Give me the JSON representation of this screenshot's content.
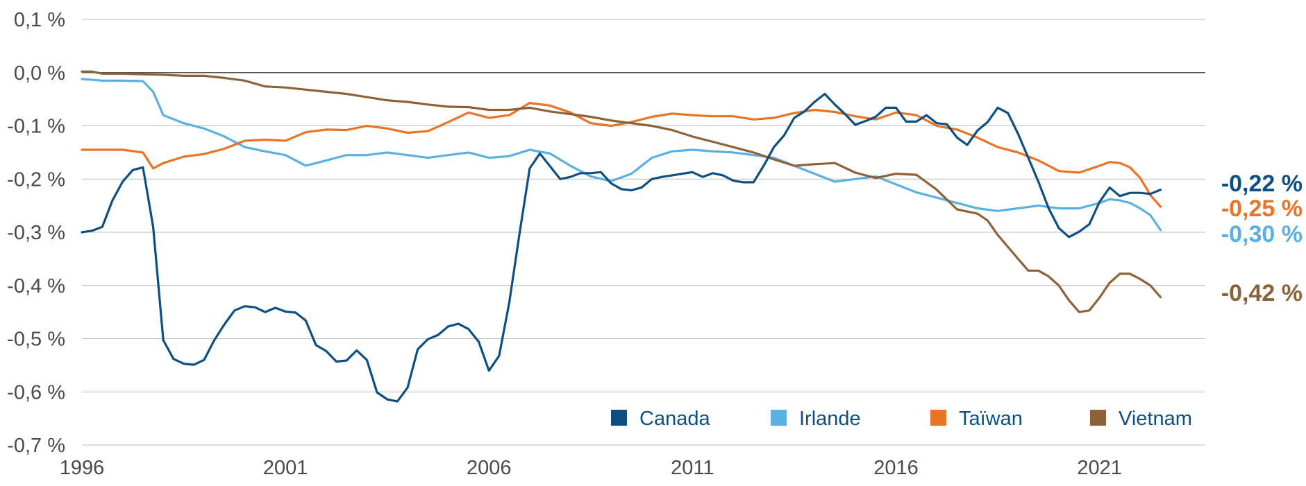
{
  "chart_data": {
    "type": "line",
    "title": "",
    "xlabel": "",
    "ylabel": "",
    "xlim": [
      1996,
      2023.6
    ],
    "ylim": [
      -0.7,
      0.1
    ],
    "grid": true,
    "legend_position": "bottom-right",
    "x_ticks": [
      1996,
      2001,
      2006,
      2011,
      2016,
      2021
    ],
    "x_tick_labels": [
      "1996",
      "2001",
      "2006",
      "2011",
      "2016",
      "2021"
    ],
    "y_ticks": [
      0.1,
      0.0,
      -0.1,
      -0.2,
      -0.3,
      -0.4,
      -0.5,
      -0.6,
      -0.7
    ],
    "y_tick_labels": [
      "0,1 %",
      "0,0 %",
      "-0,1 %",
      "-0,2 %",
      "-0,3 %",
      "-0,4 %",
      "-0,5 %",
      "-0,6 %",
      "-0,7 %"
    ],
    "series": [
      {
        "name": "Canada",
        "color": "#0d4f82",
        "end_label": "-0,22 %",
        "points": [
          [
            1996.0,
            -0.3
          ],
          [
            1996.25,
            -0.297
          ],
          [
            1996.5,
            -0.29
          ],
          [
            1996.75,
            -0.24
          ],
          [
            1997.0,
            -0.205
          ],
          [
            1997.25,
            -0.183
          ],
          [
            1997.5,
            -0.178
          ],
          [
            1997.75,
            -0.29
          ],
          [
            1998.0,
            -0.503
          ],
          [
            1998.25,
            -0.538
          ],
          [
            1998.5,
            -0.547
          ],
          [
            1998.75,
            -0.549
          ],
          [
            1999.0,
            -0.54
          ],
          [
            1999.25,
            -0.503
          ],
          [
            1999.5,
            -0.473
          ],
          [
            1999.75,
            -0.447
          ],
          [
            2000.0,
            -0.439
          ],
          [
            2000.25,
            -0.441
          ],
          [
            2000.5,
            -0.45
          ],
          [
            2000.75,
            -0.442
          ],
          [
            2001.0,
            -0.449
          ],
          [
            2001.25,
            -0.451
          ],
          [
            2001.5,
            -0.466
          ],
          [
            2001.75,
            -0.512
          ],
          [
            2002.0,
            -0.523
          ],
          [
            2002.25,
            -0.543
          ],
          [
            2002.5,
            -0.541
          ],
          [
            2002.75,
            -0.522
          ],
          [
            2003.0,
            -0.54
          ],
          [
            2003.25,
            -0.601
          ],
          [
            2003.5,
            -0.614
          ],
          [
            2003.75,
            -0.618
          ],
          [
            2004.0,
            -0.592
          ],
          [
            2004.25,
            -0.52
          ],
          [
            2004.5,
            -0.501
          ],
          [
            2004.75,
            -0.493
          ],
          [
            2005.0,
            -0.477
          ],
          [
            2005.25,
            -0.472
          ],
          [
            2005.5,
            -0.482
          ],
          [
            2005.75,
            -0.506
          ],
          [
            2006.0,
            -0.56
          ],
          [
            2006.25,
            -0.532
          ],
          [
            2006.5,
            -0.432
          ],
          [
            2006.75,
            -0.303
          ],
          [
            2007.0,
            -0.18
          ],
          [
            2007.25,
            -0.152
          ],
          [
            2007.5,
            -0.176
          ],
          [
            2007.75,
            -0.2
          ],
          [
            2008.0,
            -0.196
          ],
          [
            2008.25,
            -0.189
          ],
          [
            2008.5,
            -0.189
          ],
          [
            2008.75,
            -0.187
          ],
          [
            2009.0,
            -0.208
          ],
          [
            2009.25,
            -0.219
          ],
          [
            2009.5,
            -0.221
          ],
          [
            2009.75,
            -0.216
          ],
          [
            2010.0,
            -0.2
          ],
          [
            2010.25,
            -0.196
          ],
          [
            2010.5,
            -0.193
          ],
          [
            2010.75,
            -0.19
          ],
          [
            2011.0,
            -0.187
          ],
          [
            2011.25,
            -0.196
          ],
          [
            2011.5,
            -0.189
          ],
          [
            2011.75,
            -0.193
          ],
          [
            2012.0,
            -0.203
          ],
          [
            2012.25,
            -0.206
          ],
          [
            2012.5,
            -0.206
          ],
          [
            2012.75,
            -0.175
          ],
          [
            2013.0,
            -0.14
          ],
          [
            2013.25,
            -0.118
          ],
          [
            2013.5,
            -0.085
          ],
          [
            2013.75,
            -0.073
          ],
          [
            2014.0,
            -0.055
          ],
          [
            2014.25,
            -0.04
          ],
          [
            2014.5,
            -0.06
          ],
          [
            2014.75,
            -0.078
          ],
          [
            2015.0,
            -0.098
          ],
          [
            2015.25,
            -0.091
          ],
          [
            2015.5,
            -0.083
          ],
          [
            2015.75,
            -0.066
          ],
          [
            2016.0,
            -0.066
          ],
          [
            2016.25,
            -0.092
          ],
          [
            2016.5,
            -0.092
          ],
          [
            2016.75,
            -0.08
          ],
          [
            2017.0,
            -0.095
          ],
          [
            2017.25,
            -0.097
          ],
          [
            2017.5,
            -0.122
          ],
          [
            2017.75,
            -0.136
          ],
          [
            2018.0,
            -0.109
          ],
          [
            2018.25,
            -0.093
          ],
          [
            2018.5,
            -0.066
          ],
          [
            2018.75,
            -0.076
          ],
          [
            2019.0,
            -0.115
          ],
          [
            2019.25,
            -0.16
          ],
          [
            2019.5,
            -0.205
          ],
          [
            2019.75,
            -0.255
          ],
          [
            2020.0,
            -0.292
          ],
          [
            2020.25,
            -0.309
          ],
          [
            2020.5,
            -0.299
          ],
          [
            2020.75,
            -0.285
          ],
          [
            2021.0,
            -0.243
          ],
          [
            2021.25,
            -0.216
          ],
          [
            2021.5,
            -0.232
          ],
          [
            2021.75,
            -0.226
          ],
          [
            2022.0,
            -0.226
          ],
          [
            2022.25,
            -0.228
          ],
          [
            2022.5,
            -0.22
          ]
        ]
      },
      {
        "name": "Irlande",
        "color": "#5ab0e2",
        "end_label": "-0,30 %",
        "points": [
          [
            1996.0,
            -0.012
          ],
          [
            1996.5,
            -0.015
          ],
          [
            1997.0,
            -0.015
          ],
          [
            1997.5,
            -0.016
          ],
          [
            1997.75,
            -0.036
          ],
          [
            1998.0,
            -0.08
          ],
          [
            1998.5,
            -0.095
          ],
          [
            1999.0,
            -0.105
          ],
          [
            1999.5,
            -0.12
          ],
          [
            2000.0,
            -0.14
          ],
          [
            2000.5,
            -0.148
          ],
          [
            2001.0,
            -0.155
          ],
          [
            2001.5,
            -0.175
          ],
          [
            2002.0,
            -0.165
          ],
          [
            2002.5,
            -0.155
          ],
          [
            2003.0,
            -0.155
          ],
          [
            2003.5,
            -0.15
          ],
          [
            2004.0,
            -0.155
          ],
          [
            2004.5,
            -0.16
          ],
          [
            2005.0,
            -0.155
          ],
          [
            2005.5,
            -0.15
          ],
          [
            2006.0,
            -0.16
          ],
          [
            2006.5,
            -0.157
          ],
          [
            2007.0,
            -0.145
          ],
          [
            2007.5,
            -0.152
          ],
          [
            2008.0,
            -0.175
          ],
          [
            2008.5,
            -0.195
          ],
          [
            2009.0,
            -0.204
          ],
          [
            2009.5,
            -0.19
          ],
          [
            2010.0,
            -0.16
          ],
          [
            2010.5,
            -0.148
          ],
          [
            2011.0,
            -0.145
          ],
          [
            2011.5,
            -0.148
          ],
          [
            2012.0,
            -0.15
          ],
          [
            2012.5,
            -0.155
          ],
          [
            2013.0,
            -0.16
          ],
          [
            2013.5,
            -0.175
          ],
          [
            2014.0,
            -0.19
          ],
          [
            2014.5,
            -0.205
          ],
          [
            2015.0,
            -0.2
          ],
          [
            2015.5,
            -0.195
          ],
          [
            2016.0,
            -0.21
          ],
          [
            2016.5,
            -0.225
          ],
          [
            2017.0,
            -0.235
          ],
          [
            2017.5,
            -0.245
          ],
          [
            2018.0,
            -0.255
          ],
          [
            2018.5,
            -0.26
          ],
          [
            2019.0,
            -0.255
          ],
          [
            2019.5,
            -0.25
          ],
          [
            2020.0,
            -0.255
          ],
          [
            2020.5,
            -0.255
          ],
          [
            2021.0,
            -0.245
          ],
          [
            2021.25,
            -0.238
          ],
          [
            2021.5,
            -0.24
          ],
          [
            2021.75,
            -0.245
          ],
          [
            2022.0,
            -0.255
          ],
          [
            2022.25,
            -0.268
          ],
          [
            2022.5,
            -0.296
          ]
        ]
      },
      {
        "name": "Taïwan",
        "color": "#ea7325",
        "end_label": "-0,25 %",
        "points": [
          [
            1996.0,
            -0.145
          ],
          [
            1996.5,
            -0.145
          ],
          [
            1997.0,
            -0.145
          ],
          [
            1997.5,
            -0.15
          ],
          [
            1997.75,
            -0.18
          ],
          [
            1998.0,
            -0.17
          ],
          [
            1998.5,
            -0.158
          ],
          [
            1999.0,
            -0.153
          ],
          [
            1999.5,
            -0.143
          ],
          [
            2000.0,
            -0.128
          ],
          [
            2000.5,
            -0.126
          ],
          [
            2001.0,
            -0.128
          ],
          [
            2001.5,
            -0.112
          ],
          [
            2002.0,
            -0.107
          ],
          [
            2002.5,
            -0.108
          ],
          [
            2003.0,
            -0.1
          ],
          [
            2003.5,
            -0.105
          ],
          [
            2004.0,
            -0.113
          ],
          [
            2004.5,
            -0.11
          ],
          [
            2005.0,
            -0.093
          ],
          [
            2005.5,
            -0.075
          ],
          [
            2006.0,
            -0.085
          ],
          [
            2006.5,
            -0.08
          ],
          [
            2007.0,
            -0.057
          ],
          [
            2007.5,
            -0.062
          ],
          [
            2008.0,
            -0.075
          ],
          [
            2008.5,
            -0.095
          ],
          [
            2009.0,
            -0.1
          ],
          [
            2009.5,
            -0.093
          ],
          [
            2010.0,
            -0.083
          ],
          [
            2010.5,
            -0.077
          ],
          [
            2011.0,
            -0.08
          ],
          [
            2011.5,
            -0.082
          ],
          [
            2012.0,
            -0.082
          ],
          [
            2012.5,
            -0.088
          ],
          [
            2013.0,
            -0.085
          ],
          [
            2013.5,
            -0.076
          ],
          [
            2014.0,
            -0.07
          ],
          [
            2014.5,
            -0.074
          ],
          [
            2015.0,
            -0.082
          ],
          [
            2015.5,
            -0.088
          ],
          [
            2016.0,
            -0.075
          ],
          [
            2016.5,
            -0.08
          ],
          [
            2017.0,
            -0.1
          ],
          [
            2017.5,
            -0.107
          ],
          [
            2018.0,
            -0.122
          ],
          [
            2018.5,
            -0.14
          ],
          [
            2019.0,
            -0.15
          ],
          [
            2019.5,
            -0.165
          ],
          [
            2020.0,
            -0.185
          ],
          [
            2020.5,
            -0.188
          ],
          [
            2021.0,
            -0.175
          ],
          [
            2021.25,
            -0.168
          ],
          [
            2021.5,
            -0.17
          ],
          [
            2021.75,
            -0.178
          ],
          [
            2022.0,
            -0.198
          ],
          [
            2022.25,
            -0.23
          ],
          [
            2022.5,
            -0.252
          ]
        ]
      },
      {
        "name": "Vietnam",
        "color": "#8c6239",
        "end_label": "-0,42 %",
        "points": [
          [
            1996.0,
            0.002
          ],
          [
            1996.25,
            0.002
          ],
          [
            1996.5,
            -0.002
          ],
          [
            1997.0,
            -0.002
          ],
          [
            1997.5,
            -0.003
          ],
          [
            1998.0,
            -0.004
          ],
          [
            1998.5,
            -0.006
          ],
          [
            1999.0,
            -0.006
          ],
          [
            1999.5,
            -0.01
          ],
          [
            2000.0,
            -0.015
          ],
          [
            2000.5,
            -0.026
          ],
          [
            2001.0,
            -0.028
          ],
          [
            2001.5,
            -0.032
          ],
          [
            2002.0,
            -0.036
          ],
          [
            2002.5,
            -0.04
          ],
          [
            2003.0,
            -0.046
          ],
          [
            2003.5,
            -0.052
          ],
          [
            2004.0,
            -0.055
          ],
          [
            2004.5,
            -0.06
          ],
          [
            2005.0,
            -0.064
          ],
          [
            2005.5,
            -0.065
          ],
          [
            2006.0,
            -0.07
          ],
          [
            2006.5,
            -0.07
          ],
          [
            2007.0,
            -0.066
          ],
          [
            2007.5,
            -0.073
          ],
          [
            2008.0,
            -0.078
          ],
          [
            2008.5,
            -0.083
          ],
          [
            2009.0,
            -0.09
          ],
          [
            2009.5,
            -0.095
          ],
          [
            2010.0,
            -0.1
          ],
          [
            2010.5,
            -0.108
          ],
          [
            2011.0,
            -0.12
          ],
          [
            2011.5,
            -0.13
          ],
          [
            2012.0,
            -0.14
          ],
          [
            2012.5,
            -0.15
          ],
          [
            2013.0,
            -0.163
          ],
          [
            2013.5,
            -0.175
          ],
          [
            2014.0,
            -0.172
          ],
          [
            2014.5,
            -0.17
          ],
          [
            2015.0,
            -0.188
          ],
          [
            2015.5,
            -0.198
          ],
          [
            2016.0,
            -0.19
          ],
          [
            2016.5,
            -0.192
          ],
          [
            2017.0,
            -0.22
          ],
          [
            2017.5,
            -0.257
          ],
          [
            2018.0,
            -0.265
          ],
          [
            2018.25,
            -0.278
          ],
          [
            2018.5,
            -0.305
          ],
          [
            2019.0,
            -0.35
          ],
          [
            2019.25,
            -0.372
          ],
          [
            2019.5,
            -0.372
          ],
          [
            2019.75,
            -0.383
          ],
          [
            2020.0,
            -0.4
          ],
          [
            2020.25,
            -0.428
          ],
          [
            2020.5,
            -0.45
          ],
          [
            2020.75,
            -0.447
          ],
          [
            2021.0,
            -0.423
          ],
          [
            2021.25,
            -0.395
          ],
          [
            2021.5,
            -0.378
          ],
          [
            2021.75,
            -0.378
          ],
          [
            2022.0,
            -0.388
          ],
          [
            2022.25,
            -0.4
          ],
          [
            2022.5,
            -0.422
          ]
        ]
      }
    ]
  }
}
